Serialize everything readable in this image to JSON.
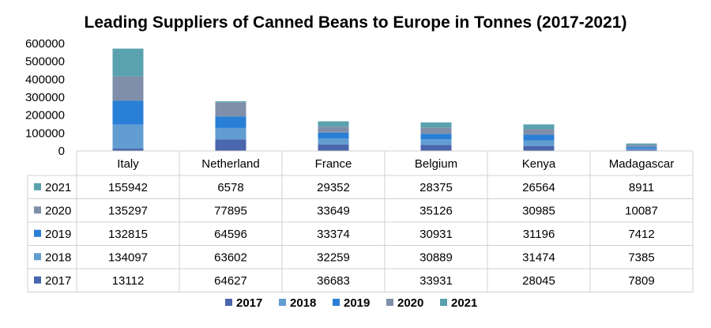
{
  "chart_data": {
    "type": "bar",
    "stacked": true,
    "title": "Leading Suppliers of Canned Beans to Europe in Tonnes (2017-2021)",
    "categories": [
      "Italy",
      "Netherland",
      "France",
      "Belgium",
      "Kenya",
      "Madagascar"
    ],
    "series": [
      {
        "name": "2017",
        "color": "#4a66ac",
        "values": [
          13112,
          64627,
          36683,
          33931,
          28045,
          7809
        ]
      },
      {
        "name": "2018",
        "color": "#629dd1",
        "values": [
          134097,
          63602,
          32259,
          30889,
          31474,
          7385
        ]
      },
      {
        "name": "2019",
        "color": "#297fd5",
        "values": [
          132815,
          64596,
          33374,
          30931,
          31196,
          7412
        ]
      },
      {
        "name": "2020",
        "color": "#7f8fa9",
        "values": [
          135297,
          77895,
          33649,
          35126,
          30985,
          10087
        ]
      },
      {
        "name": "2021",
        "color": "#5aa2ae",
        "values": [
          155942,
          6578,
          29352,
          28375,
          26564,
          8911
        ]
      }
    ],
    "yticks": [
      "600000",
      "500000",
      "400000",
      "300000",
      "200000",
      "100000",
      "0"
    ],
    "ylim": [
      0,
      600000
    ],
    "grid": false,
    "legend": "bottom",
    "data_table": true
  }
}
